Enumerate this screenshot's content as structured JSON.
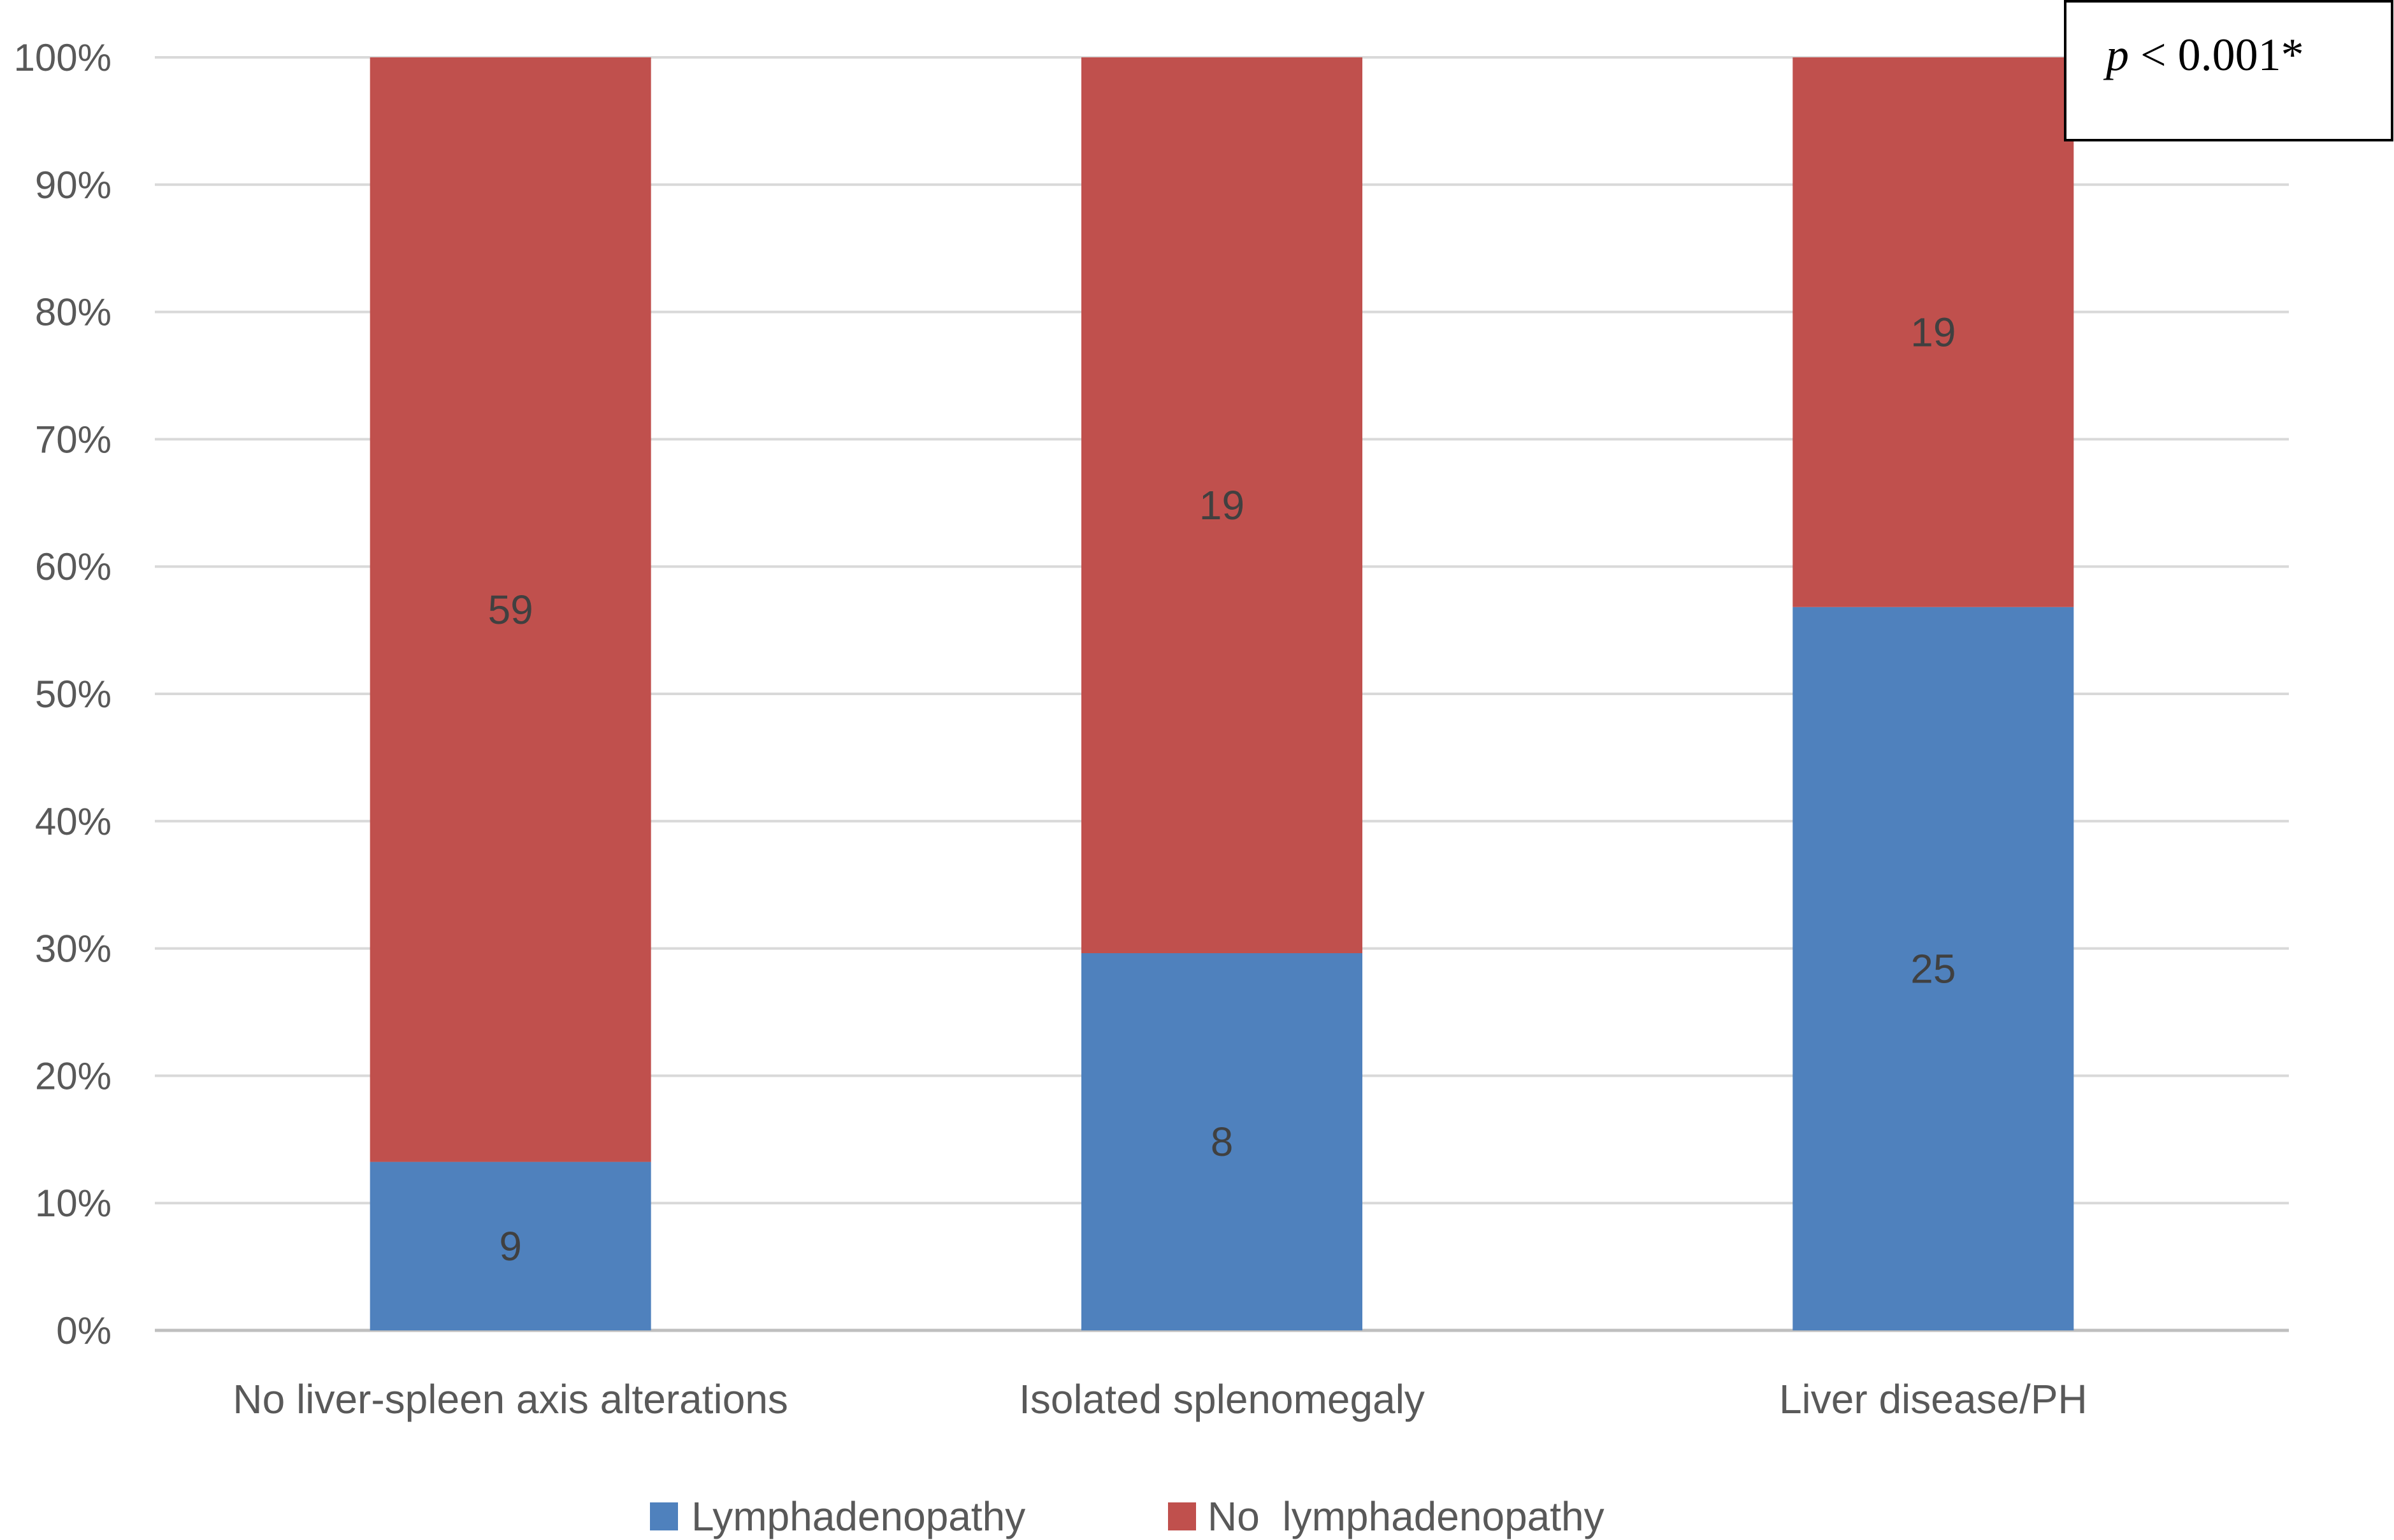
{
  "chart_data": {
    "type": "bar",
    "stacked": true,
    "percent_stacked": true,
    "categories": [
      "No liver-spleen axis alterations",
      "Isolated splenomegaly",
      "Liver disease/PH"
    ],
    "series": [
      {
        "name": "Lymphadenopathy",
        "values": [
          9,
          8,
          25
        ],
        "color": "#4F81BD"
      },
      {
        "name": "No  lymphadenopathy",
        "values": [
          59,
          19,
          19
        ],
        "color": "#C0504D"
      }
    ],
    "y_ticks": [
      "0%",
      "10%",
      "20%",
      "30%",
      "40%",
      "50%",
      "60%",
      "70%",
      "80%",
      "90%",
      "100%"
    ],
    "ylim": [
      0,
      100
    ],
    "grid": true,
    "legend_position": "bottom",
    "annotation": {
      "italic": "p",
      "rest": " < 0.001*"
    }
  }
}
